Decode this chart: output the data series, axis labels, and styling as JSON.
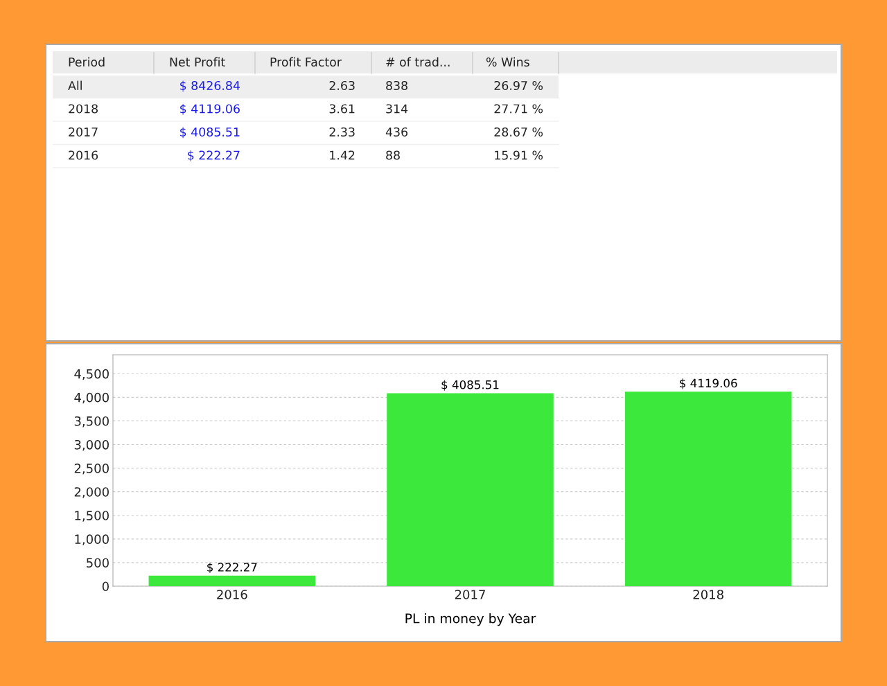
{
  "chart_data": [
    {
      "type": "other",
      "categories": [
        "Period",
        "Net Profit",
        "Profit Factor",
        "# of trad...",
        "% Wins"
      ],
      "annotations": [
        "All",
        "$ 8426.84",
        "2.63",
        "838",
        "26.97 %",
        "2018",
        "$ 4119.06",
        "3.61",
        "314",
        "27.71 %",
        "2017",
        "$ 4085.51",
        "2.33",
        "436",
        "28.67 %",
        "2016",
        "$ 222.27",
        "1.42",
        "88",
        "15.91 %"
      ]
    },
    {
      "type": "bar",
      "categories": [
        "2016",
        "2017",
        "2018"
      ],
      "values": [
        222.27,
        4085.51,
        4119.06
      ],
      "color": "#3de83d",
      "value_labels": [
        "$ 222.27",
        "$ 4085.51",
        "$ 4119.06"
      ],
      "xlabel": "PL in money by Year",
      "ylim": [
        0,
        4900
      ],
      "yticks": [
        0,
        {
          "value": 500,
          "label": "500"
        },
        {
          "value": 1000,
          "label": "1,000"
        },
        {
          "value": 1500,
          "label": "1,500"
        },
        {
          "value": 2000,
          "label": "2,000"
        },
        {
          "value": 2500,
          "label": "2,500"
        },
        {
          "value": 3000,
          "label": "3,000"
        },
        {
          "value": 3500,
          "label": "3,500"
        },
        {
          "value": 4000,
          "label": "4,000"
        },
        {
          "value": 4500,
          "label": "4,500"
        }
      ],
      "grid": "y"
    }
  ]
}
